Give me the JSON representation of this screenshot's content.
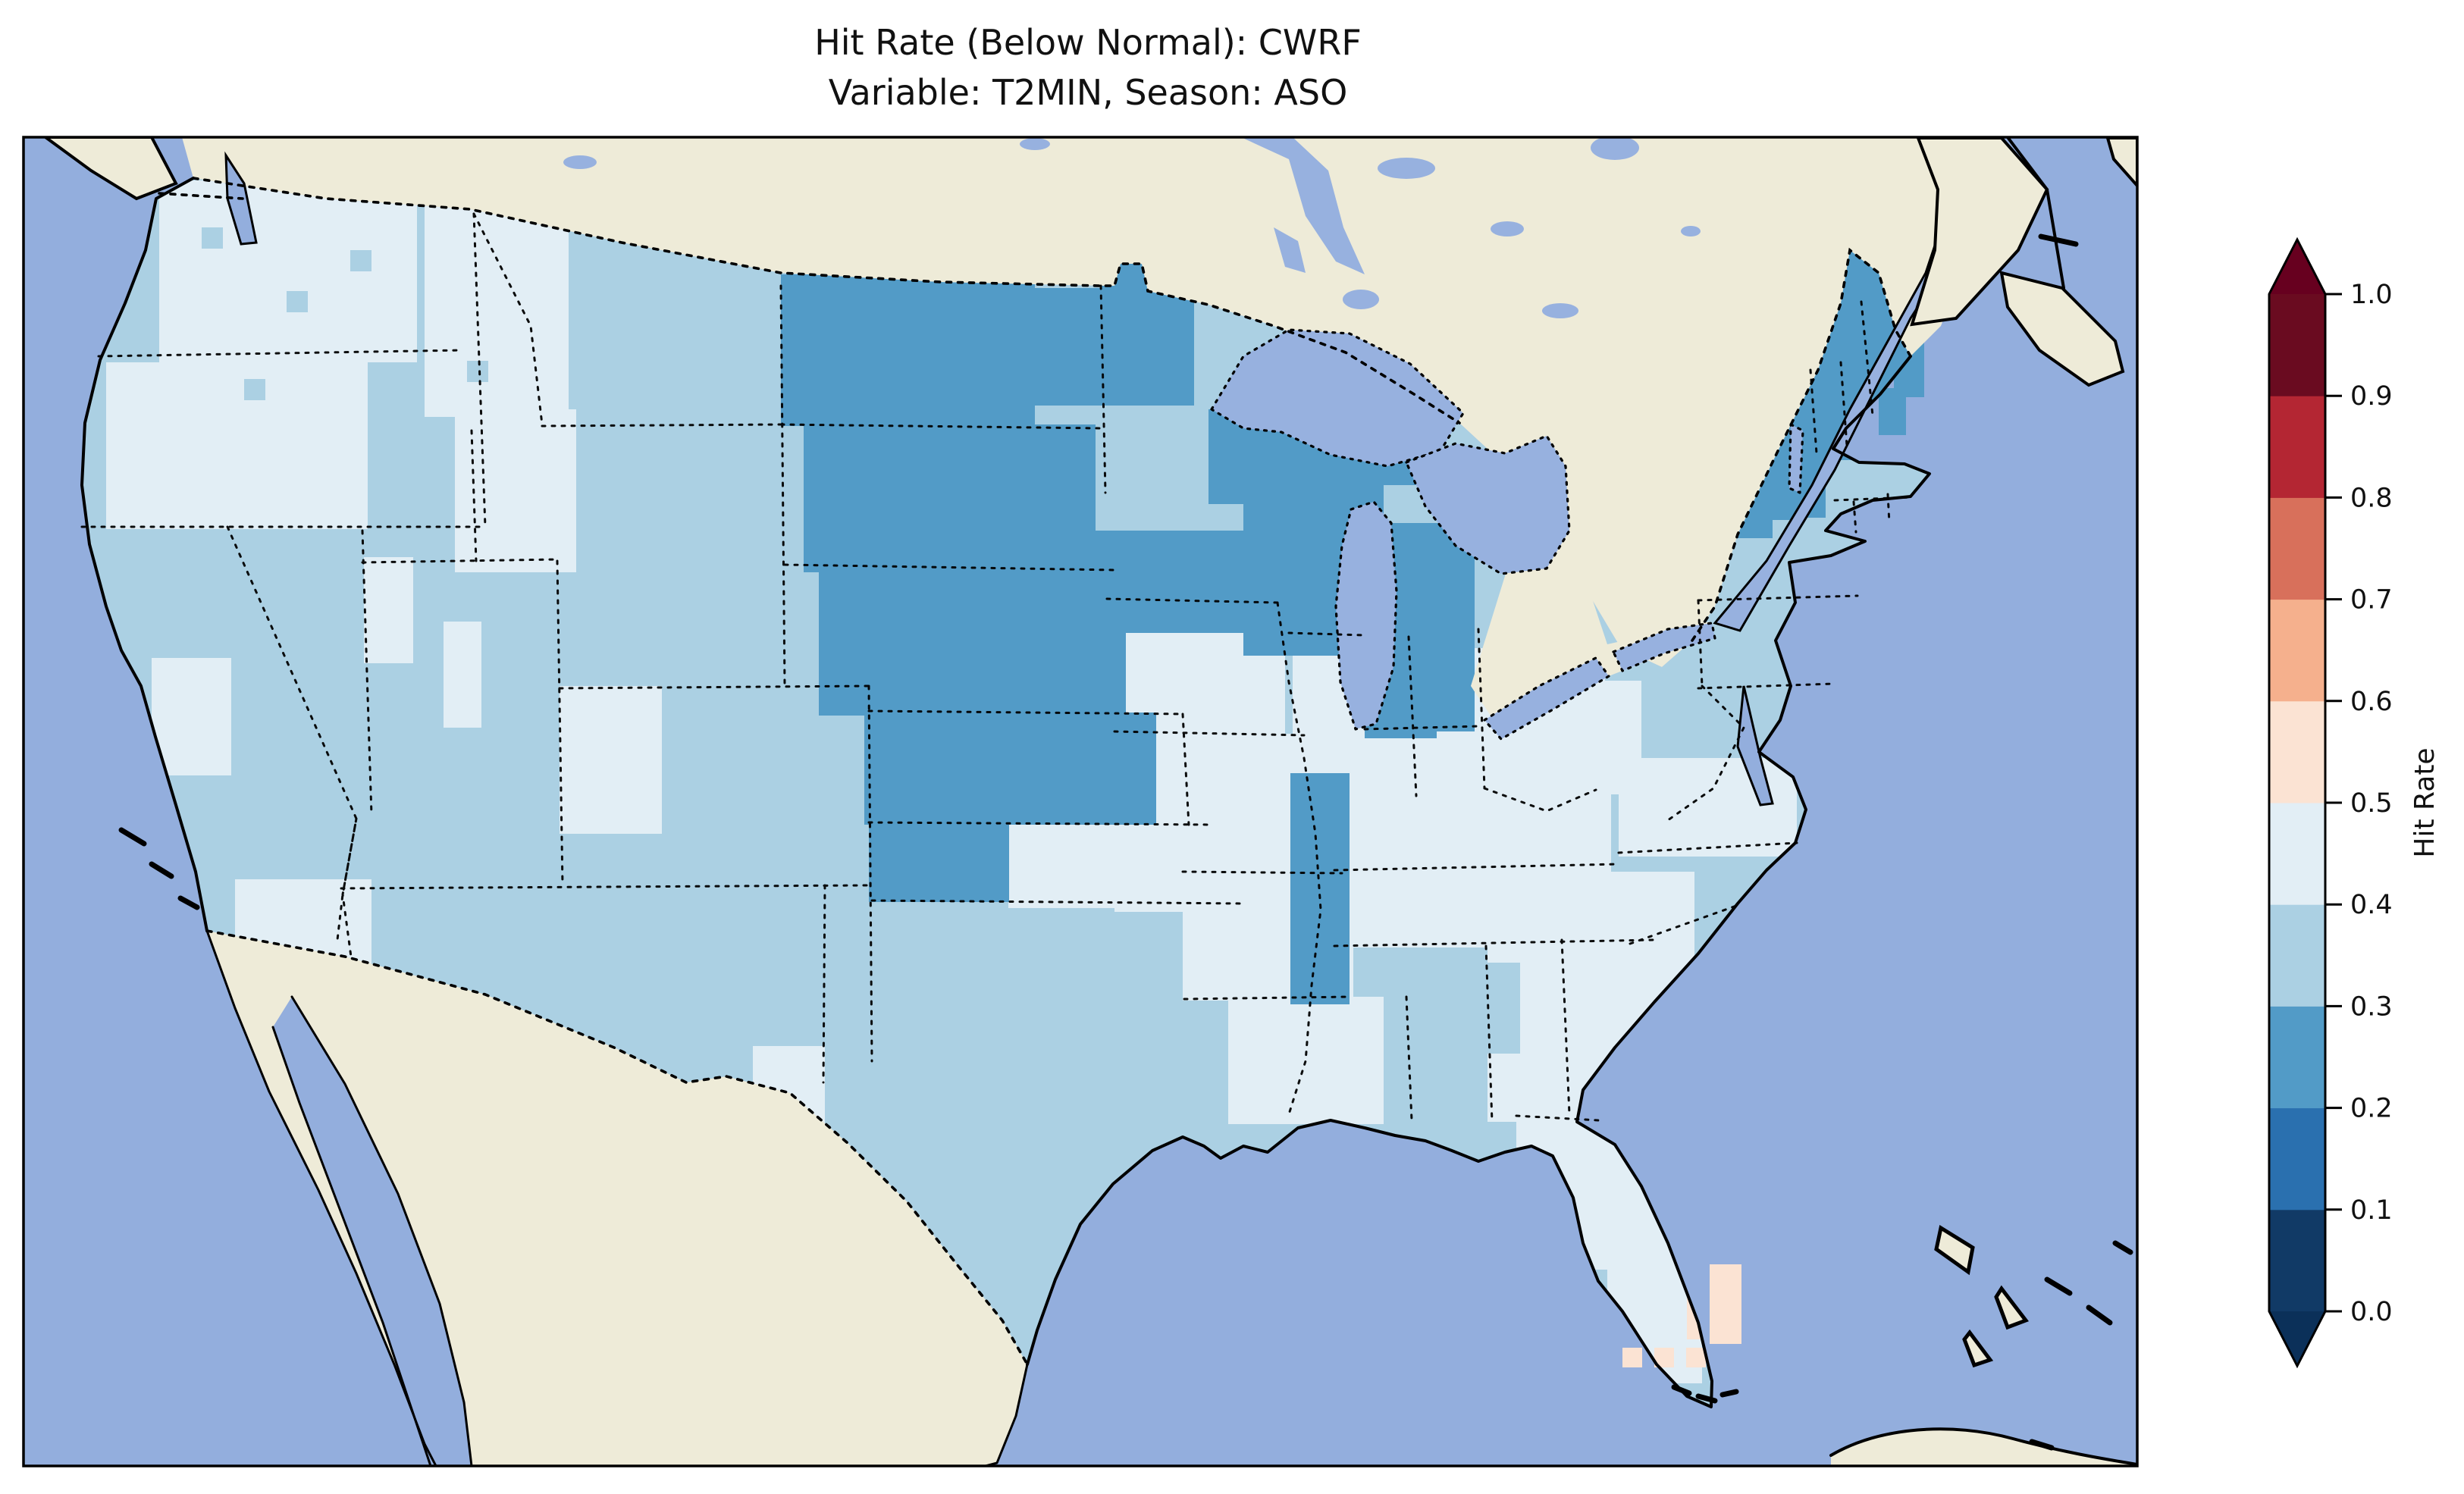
{
  "title": {
    "line1": "Hit Rate (Below Normal): CWRF",
    "line2": "Variable: T2MIN, Season: ASO"
  },
  "colorbar": {
    "label": "Hit Rate",
    "ticks": [
      "1.0",
      "0.9",
      "0.8",
      "0.7",
      "0.6",
      "0.5",
      "0.4",
      "0.3",
      "0.2",
      "0.1",
      "0.0"
    ],
    "tick_values": [
      1.0,
      0.9,
      0.8,
      0.7,
      0.6,
      0.5,
      0.4,
      0.3,
      0.2,
      0.1,
      0.0
    ],
    "bin_colors_low_to_high": [
      "#113a66",
      "#2a70af",
      "#529bc7",
      "#abd0e3",
      "#e2eef5",
      "#fbe3d3",
      "#f5b08d",
      "#d8705b",
      "#b42633",
      "#6a0b20"
    ],
    "bin_ranges": [
      "0.0–0.1",
      "0.1–0.2",
      "0.2–0.3",
      "0.3–0.4",
      "0.4–0.5",
      "0.5–0.6",
      "0.6–0.7",
      "0.7–0.8",
      "0.8–0.9",
      "0.9–1.0"
    ],
    "extend_over_color": "#67001f",
    "extend_under_color": "#0b3059",
    "colormap": "RdBu_r (discrete, 10 bins, extended both ends)"
  },
  "colors": {
    "ocean": "#93aedd",
    "inland_water": "#97b1df",
    "land": "#eeebd8",
    "frame": "#000000",
    "background": "#ffffff"
  },
  "map": {
    "base_bin": 3,
    "patches": [
      {
        "bin": 4,
        "rects": [
          [
            210,
            238,
            340,
            240
          ],
          [
            140,
            478,
            345,
            220
          ],
          [
            560,
            250,
            190,
            300
          ],
          [
            600,
            540,
            160,
            215
          ],
          [
            350,
            556,
            125,
            115
          ],
          [
            480,
            735,
            65,
            140
          ],
          [
            585,
            820,
            50,
            140
          ],
          [
            200,
            868,
            105,
            155
          ],
          [
            310,
            1160,
            180,
            275
          ],
          [
            515,
            1300,
            65,
            95
          ],
          [
            738,
            905,
            135,
            195
          ],
          [
            993,
            1380,
            95,
            130
          ],
          [
            1330,
            1088,
            290,
            110
          ],
          [
            1470,
            968,
            270,
            235
          ],
          [
            1560,
            1150,
            225,
            170
          ],
          [
            1470,
            798,
            225,
            170
          ],
          [
            1705,
            840,
            160,
            205
          ],
          [
            1862,
            855,
            255,
            195
          ],
          [
            1780,
            1040,
            345,
            210
          ],
          [
            2020,
            898,
            145,
            150
          ],
          [
            2135,
            1000,
            235,
            130
          ],
          [
            2050,
            1150,
            185,
            205
          ],
          [
            1962,
            1250,
            215,
            230
          ],
          [
            1620,
            1315,
            205,
            168
          ],
          [
            2000,
            1470,
            125,
            65
          ],
          [
            2040,
            1480,
            195,
            195
          ],
          [
            2120,
            1660,
            125,
            165
          ],
          [
            1330,
            872,
            90,
            70
          ]
        ]
      },
      {
        "bin": 3,
        "rects": [
          [
            1180,
            440,
            75,
            95
          ],
          [
            1258,
            640,
            95,
            85
          ],
          [
            1900,
            1270,
            105,
            120
          ],
          [
            266,
            300,
            28,
            28
          ],
          [
            378,
            384,
            28,
            28
          ],
          [
            462,
            330,
            28,
            28
          ],
          [
            322,
            500,
            28,
            28
          ],
          [
            616,
            476,
            28,
            28
          ],
          [
            700,
            1216,
            28,
            28
          ],
          [
            1048,
            952,
            28,
            28
          ]
        ]
      },
      {
        "bin": 2,
        "rects": [
          [
            1030,
            362,
            335,
            200
          ],
          [
            1360,
            380,
            215,
            155
          ],
          [
            1452,
            336,
            85,
            46
          ],
          [
            1060,
            560,
            385,
            195
          ],
          [
            1080,
            752,
            405,
            192
          ],
          [
            1140,
            940,
            385,
            148
          ],
          [
            1146,
            1085,
            185,
            105
          ],
          [
            1360,
            700,
            295,
            135
          ],
          [
            1594,
            540,
            205,
            125
          ],
          [
            1640,
            600,
            185,
            265
          ],
          [
            1700,
            545,
            185,
            95
          ],
          [
            1820,
            690,
            125,
            275
          ],
          [
            1800,
            902,
            95,
            72
          ],
          [
            1702,
            1020,
            78,
            305
          ],
          [
            2392,
            295,
            108,
            240
          ],
          [
            2355,
            432,
            100,
            175
          ],
          [
            2228,
            548,
            138,
            138
          ],
          [
            2298,
            565,
            110,
            118
          ],
          [
            2258,
            658,
            80,
            52
          ],
          [
            2528,
            642,
            26,
            26
          ]
        ]
      },
      {
        "bin": 5,
        "rects": [
          [
            2225,
            1625,
            72,
            142
          ]
        ]
      }
    ],
    "overlay_cells": [
      {
        "bin": 5,
        "rects": [
          [
            2255,
            1668,
            42,
            105
          ],
          [
            2140,
            1778,
            26,
            26
          ],
          [
            2182,
            1778,
            26,
            26
          ],
          [
            2224,
            1778,
            26,
            26
          ]
        ]
      },
      {
        "bin": 2,
        "rects": [
          [
            2498,
            432,
            40,
            92
          ],
          [
            2478,
            512,
            36,
            62
          ]
        ]
      }
    ]
  }
}
